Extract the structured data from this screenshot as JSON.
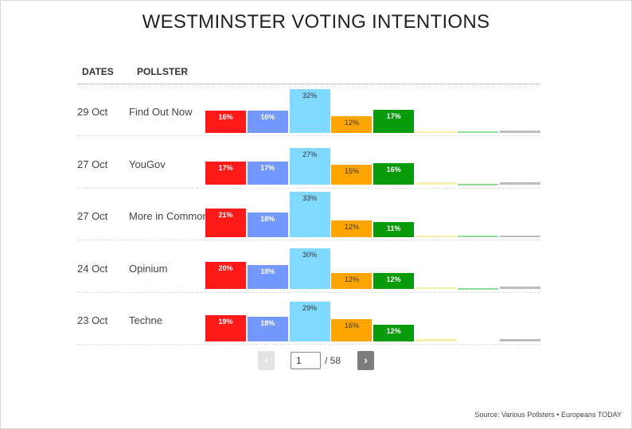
{
  "title": "WESTMINSTER VOTING INTENTIONS",
  "headers": {
    "dates": "DATES",
    "pollster": "POLLSTER"
  },
  "pager": {
    "prev": "‹",
    "next": "›",
    "current": "1",
    "total": "/ 58"
  },
  "source": "Source: Various Pollsters • Europeans TODAY",
  "colors": {
    "party1": "#ff1a1a",
    "party2": "#7399ff",
    "party3": "#80d9ff",
    "party4": "#ffa500",
    "party5": "#0a9b0a",
    "party6": "#f6f1a8",
    "party7": "#8fdc9a",
    "party8": "#bdbdbd"
  },
  "chart_data": {
    "type": "bar",
    "title": "WESTMINSTER VOTING INTENTIONS",
    "categories": [
      "29 Oct",
      "27 Oct",
      "27 Oct",
      "24 Oct",
      "23 Oct"
    ],
    "pollsters": [
      "Find Out Now",
      "YouGov",
      "More in Common",
      "Opinium",
      "Techne"
    ],
    "ylim": [
      0,
      35
    ],
    "series": [
      {
        "values": [
          16,
          17,
          21,
          20,
          19
        ],
        "labels": [
          "16%",
          "17%",
          "21%",
          "20%",
          "19%"
        ]
      },
      {
        "values": [
          16,
          17,
          18,
          18,
          18
        ],
        "labels": [
          "16%",
          "17%",
          "18%",
          "18%",
          "18%"
        ]
      },
      {
        "values": [
          32,
          27,
          33,
          30,
          29
        ],
        "labels": [
          "32%",
          "27%",
          "33%",
          "30%",
          "29%"
        ]
      },
      {
        "values": [
          12,
          15,
          12,
          12,
          16
        ],
        "labels": [
          "12%",
          "15%",
          "12%",
          "12%",
          "16%"
        ]
      },
      {
        "values": [
          17,
          16,
          11,
          12,
          12
        ],
        "labels": [
          "17%",
          "16%",
          "11%",
          "12%",
          "12%"
        ]
      },
      {
        "values": [
          1,
          2,
          1,
          1.5,
          2
        ],
        "labels": [
          "",
          "",
          "",
          "",
          ""
        ]
      },
      {
        "values": [
          0.5,
          0.5,
          0.5,
          0.5,
          0
        ],
        "labels": [
          "",
          "",
          "",
          "",
          ""
        ]
      },
      {
        "values": [
          1.5,
          2,
          0.5,
          2,
          2
        ],
        "labels": [
          "",
          "",
          "",
          "",
          ""
        ]
      }
    ]
  }
}
